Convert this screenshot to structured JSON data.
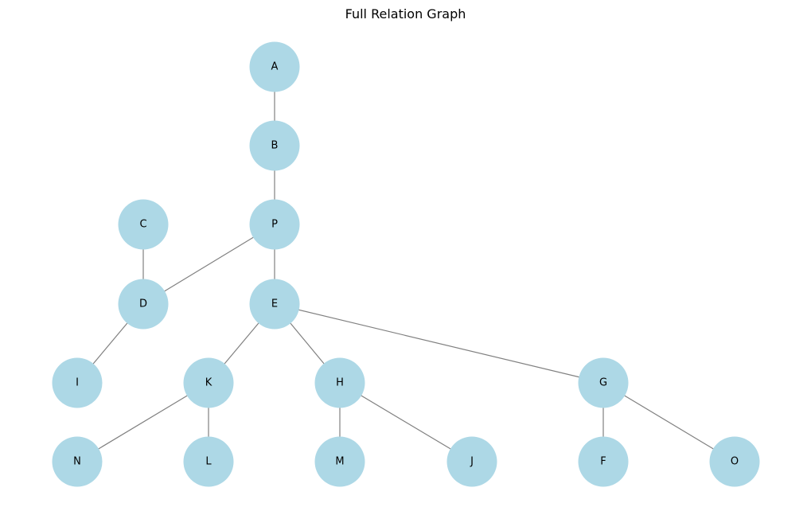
{
  "title": "Full Relation Graph",
  "colors": {
    "node_fill": "#add8e6",
    "edge_stroke": "#808080",
    "label_text": "#000000"
  },
  "nodes": [
    {
      "id": "A",
      "label": "A"
    },
    {
      "id": "B",
      "label": "B"
    },
    {
      "id": "P",
      "label": "P"
    },
    {
      "id": "C",
      "label": "C"
    },
    {
      "id": "D",
      "label": "D"
    },
    {
      "id": "E",
      "label": "E"
    },
    {
      "id": "I",
      "label": "I"
    },
    {
      "id": "K",
      "label": "K"
    },
    {
      "id": "H",
      "label": "H"
    },
    {
      "id": "G",
      "label": "G"
    },
    {
      "id": "N",
      "label": "N"
    },
    {
      "id": "L",
      "label": "L"
    },
    {
      "id": "M",
      "label": "M"
    },
    {
      "id": "J",
      "label": "J"
    },
    {
      "id": "F",
      "label": "F"
    },
    {
      "id": "O",
      "label": "O"
    }
  ],
  "edges": [
    [
      "A",
      "B"
    ],
    [
      "B",
      "P"
    ],
    [
      "P",
      "D"
    ],
    [
      "P",
      "E"
    ],
    [
      "C",
      "D"
    ],
    [
      "D",
      "I"
    ],
    [
      "E",
      "K"
    ],
    [
      "E",
      "H"
    ],
    [
      "E",
      "G"
    ],
    [
      "K",
      "N"
    ],
    [
      "K",
      "L"
    ],
    [
      "H",
      "M"
    ],
    [
      "H",
      "J"
    ],
    [
      "G",
      "F"
    ],
    [
      "G",
      "O"
    ]
  ]
}
